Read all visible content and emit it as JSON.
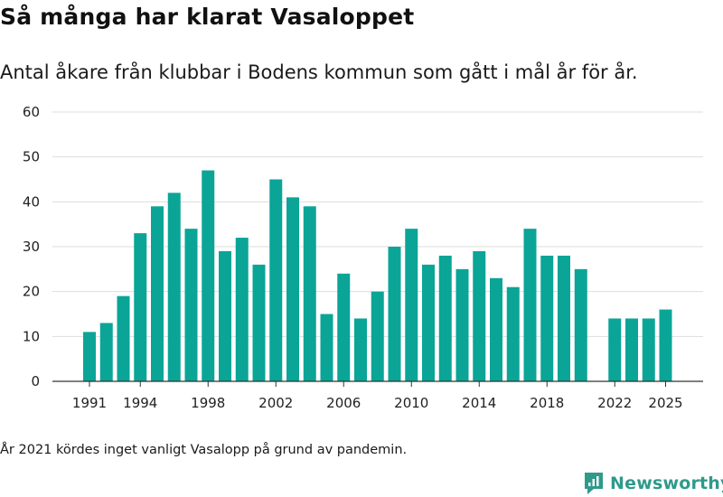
{
  "title": "Så många har klarat Vasaloppet",
  "subtitle": "Antal åkare från klubbar i Bodens kommun som gått i mål år för år.",
  "note": "År 2021 kördes inget vanligt Vasalopp på grund av pandemin.",
  "brand": {
    "name": "Newsworthy",
    "icon": "newsworthy-logo-icon",
    "color": "#2e9a8c"
  },
  "chart_data": {
    "type": "bar",
    "title": "Så många har klarat Vasaloppet",
    "subtitle": "Antal åkare från klubbar i Bodens kommun som gått i mål år för år.",
    "xlabel": "",
    "ylabel": "",
    "ylim": [
      0,
      60
    ],
    "yticks": [
      0,
      10,
      20,
      30,
      40,
      50,
      60
    ],
    "xtick_labels": [
      "1991",
      "1994",
      "1998",
      "2002",
      "2006",
      "2010",
      "2014",
      "2018",
      "2022",
      "2025"
    ],
    "grid": true,
    "bar_color": "#0aa597",
    "categories": [
      1991,
      1992,
      1993,
      1994,
      1995,
      1996,
      1997,
      1998,
      1999,
      2000,
      2001,
      2002,
      2003,
      2004,
      2005,
      2006,
      2007,
      2008,
      2009,
      2010,
      2011,
      2012,
      2013,
      2014,
      2015,
      2016,
      2017,
      2018,
      2019,
      2020,
      2021,
      2022,
      2023,
      2024,
      2025
    ],
    "values": [
      11,
      13,
      19,
      33,
      39,
      42,
      34,
      47,
      29,
      32,
      26,
      45,
      41,
      39,
      15,
      24,
      14,
      20,
      30,
      34,
      26,
      28,
      25,
      29,
      23,
      21,
      34,
      28,
      28,
      25,
      null,
      14,
      14,
      14,
      16
    ]
  }
}
